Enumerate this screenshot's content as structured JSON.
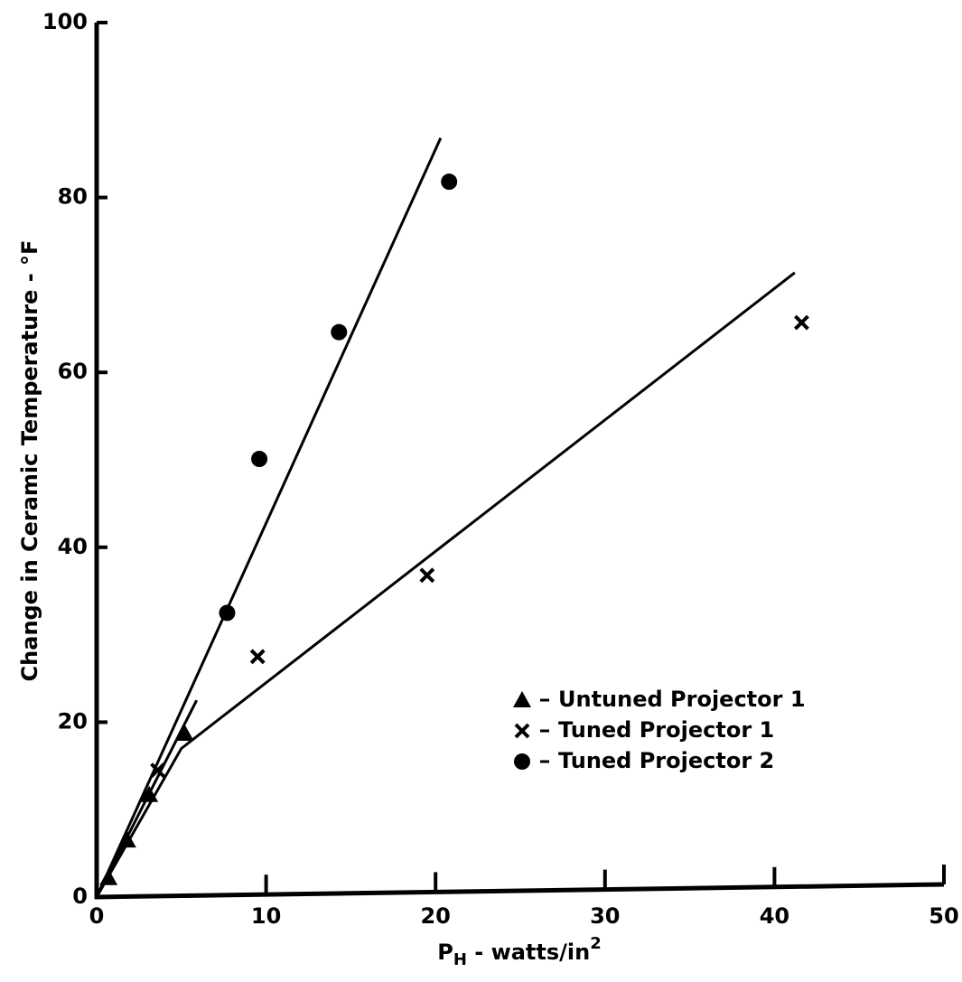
{
  "chart_data": {
    "type": "scatter",
    "xlabel": {
      "main": "P",
      "sub": "H",
      "rest": " - watts/in",
      "sup": "2"
    },
    "ylabel": "Change in Ceramic Temperature - °F",
    "xlim": [
      0,
      50
    ],
    "xticks": [
      0,
      10,
      20,
      30,
      40,
      50
    ],
    "ylim": [
      0,
      100
    ],
    "yticks": [
      0,
      20,
      40,
      60,
      80,
      100
    ],
    "grid": false,
    "legend": "lower-right",
    "series": [
      {
        "name": "Untuned Projector 1",
        "marker": "triangle",
        "color": "#000000",
        "x": [
          0.7,
          1.8,
          3.1,
          5.2
        ],
        "values": [
          2.2,
          6.5,
          11.7,
          18.7
        ]
      },
      {
        "name": "Tuned Projector 1",
        "marker": "x",
        "color": "#000000",
        "x": [
          3.6,
          9.5,
          19.5,
          41.6
        ],
        "values": [
          14.5,
          27.5,
          36.8,
          65.7
        ]
      },
      {
        "name": "Tuned Projector 2",
        "marker": "circle",
        "color": "#000000",
        "x": [
          7.7,
          9.6,
          14.3,
          20.8
        ],
        "values": [
          32.5,
          50.1,
          64.6,
          81.8
        ]
      }
    ],
    "fit_lines": [
      {
        "color": "#000000",
        "x": [
          0,
          20.3
        ],
        "values": [
          0,
          86.8
        ]
      },
      {
        "color": "#000000",
        "x": [
          0,
          5,
          41.2
        ],
        "values": [
          0,
          17,
          71.4
        ]
      },
      {
        "color": "#000000",
        "x": [
          0,
          5.9
        ],
        "values": [
          0,
          22.5
        ]
      }
    ]
  }
}
